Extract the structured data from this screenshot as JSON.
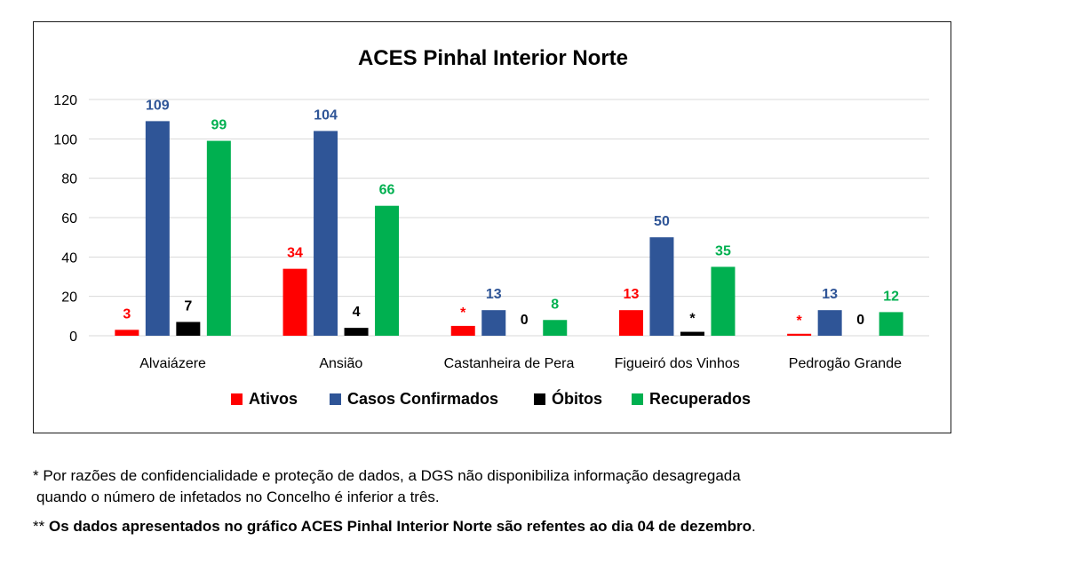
{
  "chart_data": {
    "type": "bar",
    "title": "ACES Pinhal Interior Norte",
    "categories": [
      "Alvaiázere",
      "Ansião",
      "Castanheira de Pera",
      "Figueiró dos Vinhos",
      "Pedrogão Grande"
    ],
    "series": [
      {
        "name": "Ativos",
        "color": "#ff0000",
        "label_color": "#ff0000",
        "values": [
          3,
          34,
          5,
          13,
          1
        ],
        "labels": [
          "3",
          "34",
          "*",
          "13",
          "*"
        ]
      },
      {
        "name": "Casos Confirmados",
        "color": "#2f5597",
        "label_color": "#2f5597",
        "values": [
          109,
          104,
          13,
          50,
          13
        ],
        "labels": [
          "109",
          "104",
          "13",
          "50",
          "13"
        ]
      },
      {
        "name": "Óbitos",
        "color": "#000000",
        "label_color": "#000000",
        "values": [
          7,
          4,
          0,
          2,
          0
        ],
        "labels": [
          "7",
          "4",
          "0",
          "*",
          "0"
        ]
      },
      {
        "name": "Recuperados",
        "color": "#00b050",
        "label_color": "#00b050",
        "values": [
          99,
          66,
          8,
          35,
          12
        ],
        "labels": [
          "99",
          "66",
          "8",
          "35",
          "12"
        ]
      }
    ],
    "yticks": [
      0,
      20,
      40,
      60,
      80,
      100,
      120
    ],
    "ylim": [
      0,
      120
    ],
    "grid": true,
    "legend": "bottom"
  },
  "notes": {
    "line1": "* Por razões de confidencialidade e proteção de dados, a DGS não disponibiliza informação desagregada",
    "line2": "quando o número de infetados no Concelho é inferior a três.",
    "line3_prefix": "** ",
    "line3_bold": "Os dados apresentados no gráfico ACES Pinhal Interior Norte são refentes ao dia 04 de dezembro",
    "line3_suffix": "."
  }
}
